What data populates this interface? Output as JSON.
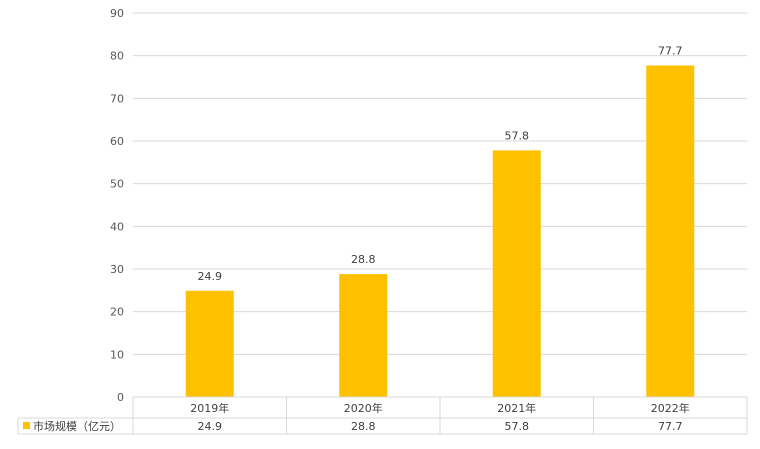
{
  "chart_data": {
    "type": "bar",
    "categories": [
      "2019年",
      "2020年",
      "2021年",
      "2022年"
    ],
    "series": [
      {
        "name": "市场规模（亿元）",
        "values": [
          24.9,
          28.8,
          57.8,
          77.7
        ],
        "color": "#FFC000"
      }
    ],
    "ylim": [
      0,
      90
    ],
    "y_ticks": [
      0,
      10,
      20,
      30,
      40,
      50,
      60,
      70,
      80,
      90
    ],
    "grid": true,
    "data_labels": [
      "24.9",
      "28.8",
      "57.8",
      "77.7"
    ],
    "data_table": true,
    "legend_placement": "data-table-left",
    "gridline_color": "#D9D9D9"
  }
}
